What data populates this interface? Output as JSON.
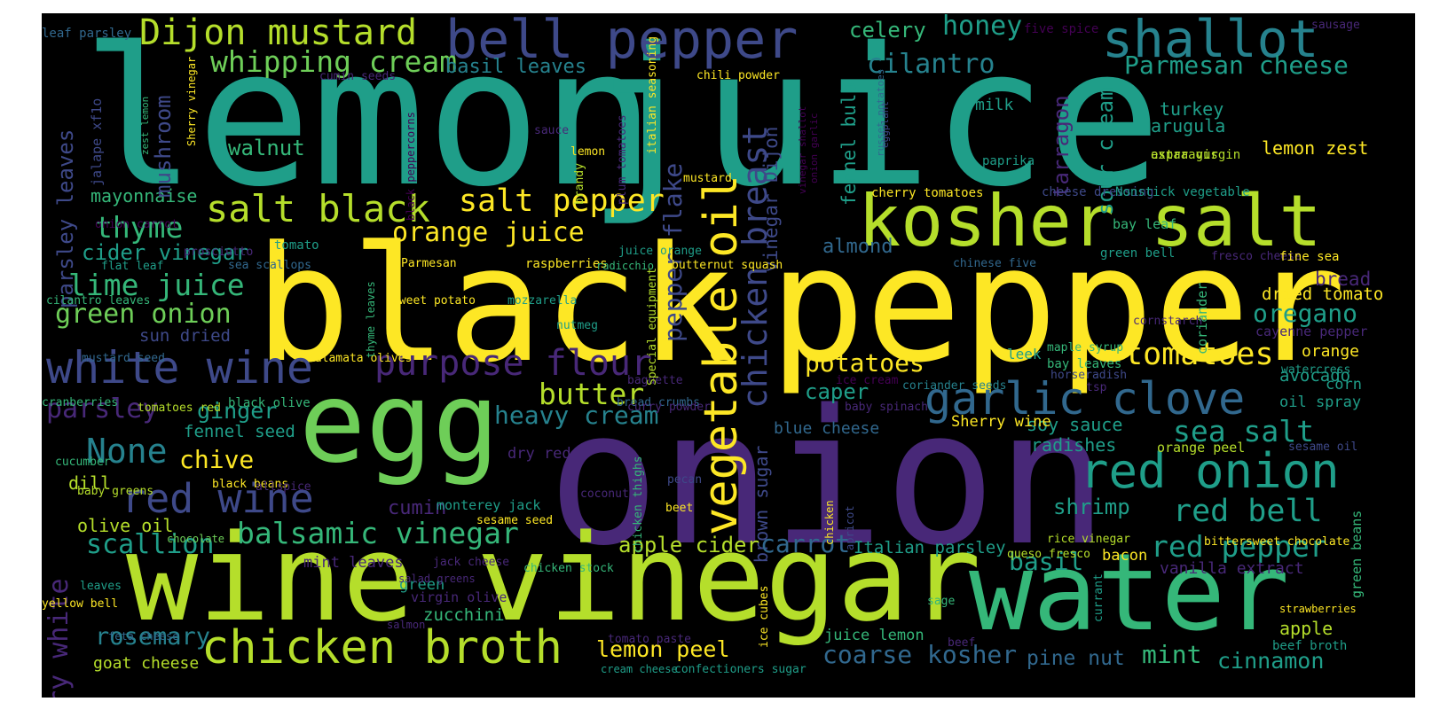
{
  "palette": {
    "yellow": "#fde725",
    "lime": "#b5de2b",
    "green": "#6ece58",
    "teal_green": "#35b779",
    "teal": "#1f9e89",
    "cyan_blue": "#26828e",
    "blue": "#31688e",
    "slate": "#3e4989",
    "indigo": "#482878",
    "purple": "#440154"
  },
  "words": [
    "lemon",
    "juice",
    "black",
    "pepper",
    "onion",
    "egg",
    "wine",
    "vinegar",
    "water",
    "kosher",
    "salt",
    "bell pepper",
    "shallot",
    "Dijon mustard",
    "whipping cream",
    "white wine",
    "purpose flour",
    "garlic clove",
    "red onion",
    "red wine",
    "chicken broth",
    "balsamic vinegar",
    "vegetable oil",
    "salt black",
    "salt pepper",
    "orange juice",
    "thyme",
    "lime juice",
    "green onion",
    "butter",
    "heavy cream",
    "parsley",
    "ginger",
    "None",
    "chive",
    "scallion",
    "rosemary",
    "sea salt",
    "red bell",
    "red pepper",
    "tomatoes",
    "potatoes",
    "Parmesan cheese",
    "cilantro",
    "honey",
    "celery",
    "basil leaves",
    "walnut",
    "mayonnaise",
    "cider vinegar",
    "mushroom",
    "parsley leaves",
    "chicken breast",
    "pepper flake",
    "vinegar Dijon",
    "fennel bulb",
    "tarragon",
    "sour cream",
    "turkey",
    "arugula",
    "lemon zest",
    "oregano",
    "dried tomato",
    "bread",
    "caper",
    "blue cheese",
    "brown sugar",
    "soy sauce",
    "radishes",
    "coarse kosher",
    "pine nut",
    "mint",
    "cinnamon",
    "basil",
    "shrimp",
    "lemon peel",
    "apple cider",
    "carrot",
    "Italian parsley",
    "dry white",
    "goat cheese",
    "zucchini",
    "cumin",
    "olive oil",
    "dill",
    "fennel seed",
    "sun dried",
    "almond",
    "milk",
    "paprika",
    "cheese dressing",
    "Nonstick vegetable",
    "cherry tomatoes",
    "asparagus",
    "extra virgin",
    "bay leaf",
    "green bell",
    "fresco cheese",
    "fine sea",
    "orange",
    "avocado",
    "corn",
    "oil spray",
    "watercress",
    "cayenne pepper",
    "coriander",
    "cornstarch",
    "leek",
    "bay leaves",
    "horseradish",
    "tsp",
    "maple syrup",
    "Sherry wine",
    "orange peel",
    "sesame oil",
    "bacon",
    "queso fresco",
    "rice vinegar",
    "bittersweet chocolate",
    "green beans",
    "vanilla extract",
    "apple",
    "beef broth",
    "strawberries",
    "currant",
    "sage",
    "juice lemon",
    "beef",
    "mint leaves",
    "green",
    "virgin olive",
    "salad greens",
    "salmon",
    "feta cheese",
    "tomato paste",
    "cream cheese",
    "confectioners sugar",
    "chicken stock",
    "jack cheese",
    "ice cubes",
    "leaves",
    "yellow bell",
    "chocolate",
    "baby greens",
    "black beans",
    "allspice",
    "cucumber",
    "tomatoes red",
    "black olive",
    "cranberries",
    "mustard seed",
    "Kalamata olives",
    "cilantro leaves",
    "flat leaf",
    "prosciutto",
    "sea scallops",
    "onion carrot",
    "tomato",
    "Parmesan",
    "mozzarella",
    "sweet potato",
    "raspberries",
    "radicchio",
    "juice orange",
    "butternut squash",
    "chinese five",
    "nutmeg",
    "bread crumbs",
    "curry powder",
    "baguette",
    "ice cream",
    "coriander seeds",
    "baby spinach",
    "dry red",
    "coconut",
    "monterey jack",
    "sesame seed",
    "pecan",
    "beet",
    "chicken thighs",
    "chicken",
    "apricot",
    "lemon",
    "sauce",
    "mustard",
    "chili powder",
    "plum tomatoes",
    "italian seasoning",
    "brandy",
    "black peppercorns",
    "Special equipment",
    "cumin seeds",
    "leaf parsley",
    "five spice",
    "sausage",
    "eggplant",
    "russet potatoes",
    "vinegar shallot",
    "onion garlic",
    "zest lemon",
    "jalape xf1o",
    "Sherry vinegar",
    "thyme leaves"
  ]
}
